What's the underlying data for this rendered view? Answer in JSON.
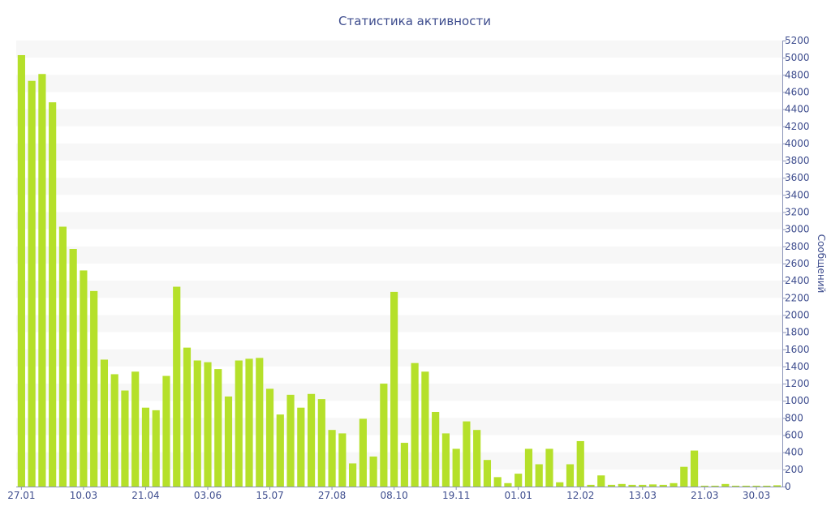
{
  "chart_data": {
    "type": "bar",
    "title": "Статистика активности",
    "xlabel": "",
    "ylabel": "Сообщений",
    "ylim": [
      0,
      5200
    ],
    "y_ticks": [
      0,
      200,
      400,
      600,
      800,
      1000,
      1200,
      1400,
      1600,
      1800,
      2000,
      2200,
      2400,
      2600,
      2800,
      3000,
      3200,
      3400,
      3600,
      3800,
      4000,
      4200,
      4400,
      4600,
      4800,
      5000,
      5200
    ],
    "x_tick_labels": [
      {
        "label": "27.01",
        "index": 0
      },
      {
        "label": "10.03",
        "index": 6
      },
      {
        "label": "21.04",
        "index": 12
      },
      {
        "label": "03.06",
        "index": 18
      },
      {
        "label": "15.07",
        "index": 24
      },
      {
        "label": "27.08",
        "index": 30
      },
      {
        "label": "08.10",
        "index": 36
      },
      {
        "label": "19.11",
        "index": 42
      },
      {
        "label": "01.01",
        "index": 48
      },
      {
        "label": "12.02",
        "index": 54
      },
      {
        "label": "13.03",
        "index": 60
      },
      {
        "label": "21.03",
        "index": 66
      },
      {
        "label": "30.03",
        "index": 71
      }
    ],
    "values": [
      5030,
      4730,
      4810,
      4480,
      3030,
      2770,
      2520,
      2280,
      1480,
      1310,
      1120,
      1340,
      920,
      890,
      1290,
      2330,
      1620,
      1470,
      1450,
      1370,
      1050,
      1470,
      1490,
      1500,
      1140,
      840,
      1070,
      920,
      1080,
      1020,
      660,
      620,
      270,
      790,
      350,
      1200,
      2270,
      510,
      1440,
      1340,
      870,
      620,
      440,
      760,
      660,
      310,
      110,
      40,
      150,
      440,
      260,
      440,
      50,
      260,
      530,
      20,
      130,
      20,
      30,
      20,
      20,
      25,
      20,
      40,
      230,
      420,
      10,
      10,
      30,
      10,
      10,
      10,
      10,
      15
    ],
    "bar_color": "#b5e02a",
    "band_color": "#f7f7f7",
    "text_color": "#3e4d8e",
    "axis_color": "#8a93b8",
    "grid": "horizontal bands",
    "y_axis_position": "right"
  }
}
